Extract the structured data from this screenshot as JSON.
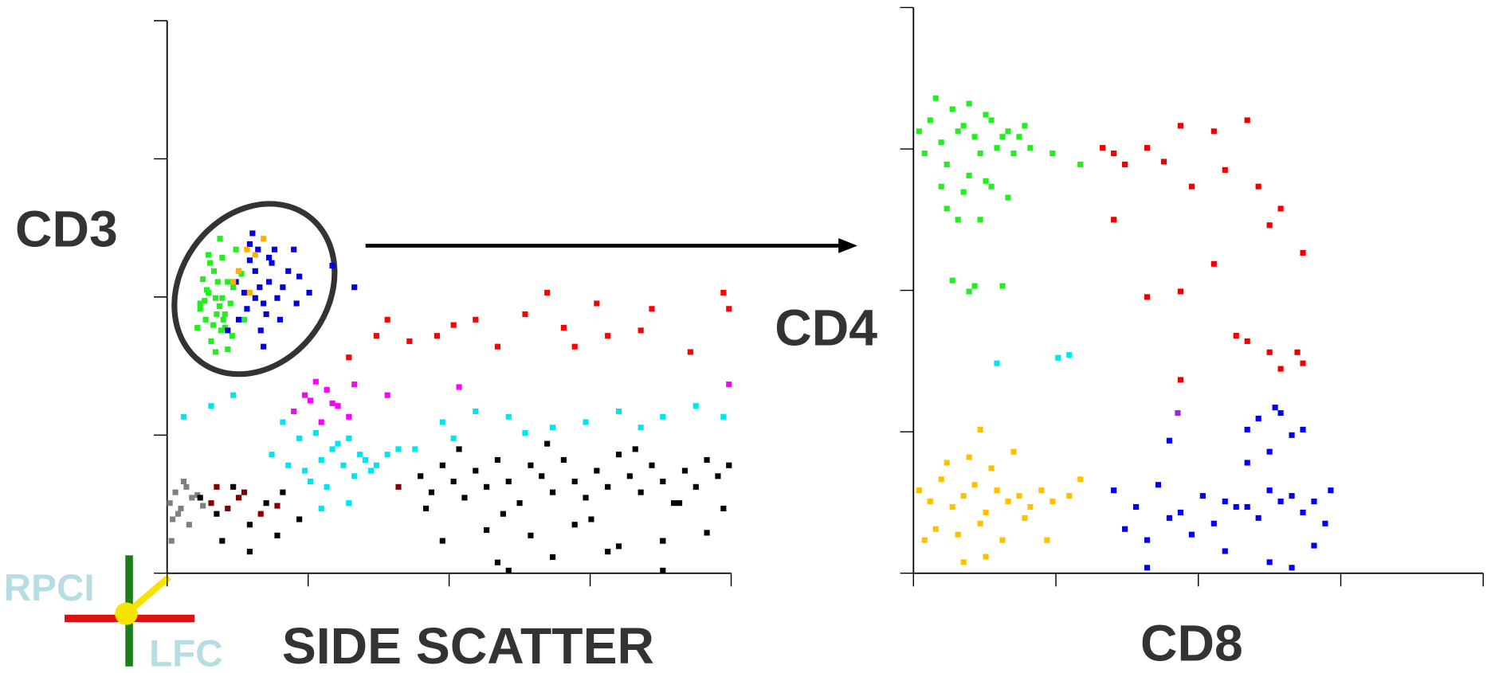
{
  "chart_data": [
    {
      "type": "scatter",
      "x_label": "SIDE SCATTER",
      "y_label": "CD3",
      "xlim": [
        0,
        1024
      ],
      "ylim": [
        0,
        1024
      ],
      "xticks": [
        0,
        256,
        512,
        768,
        1024
      ],
      "yticks": [
        0,
        256,
        512,
        768,
        1024
      ],
      "series": [
        {
          "color": "#808080",
          "x": [
            5,
            15,
            25,
            35,
            45,
            10,
            20,
            30,
            40,
            55,
            65,
            8
          ],
          "values": [
            130,
            150,
            120,
            160,
            140,
            100,
            110,
            170,
            90,
            145,
            125,
            60
          ]
        },
        {
          "color": "#000000",
          "x": [
            460,
            480,
            500,
            520,
            540,
            560,
            580,
            600,
            620,
            640,
            660,
            680,
            700,
            720,
            740,
            760,
            780,
            800,
            820,
            840,
            860,
            880,
            900,
            920,
            940,
            960,
            980,
            1000,
            1020,
            470,
            530,
            610,
            690,
            770,
            850,
            930,
            1010,
            500,
            580,
            660,
            740,
            820,
            900,
            980,
            600,
            700,
            800,
            900,
            60,
            90,
            120,
            150,
            180,
            210,
            240,
            100,
            150,
            200,
            620,
            900
          ],
          "values": [
            180,
            150,
            200,
            170,
            140,
            190,
            160,
            210,
            170,
            130,
            200,
            180,
            150,
            210,
            170,
            140,
            190,
            160,
            220,
            180,
            150,
            200,
            170,
            130,
            190,
            160,
            210,
            180,
            200,
            120,
            230,
            110,
            240,
            100,
            230,
            130,
            120,
            60,
            80,
            70,
            90,
            50,
            60,
            75,
            20,
            30,
            40,
            60,
            140,
            110,
            160,
            90,
            130,
            150,
            100,
            60,
            40,
            70,
            5,
            5
          ]
        },
        {
          "color": "#800000",
          "x": [
            80,
            110,
            140,
            170,
            90,
            130,
            200,
            420
          ],
          "values": [
            130,
            120,
            150,
            110,
            160,
            140,
            125,
            160
          ]
        },
        {
          "color": "#00e5ee",
          "x": [
            190,
            220,
            250,
            280,
            300,
            320,
            340,
            360,
            380,
            400,
            420,
            260,
            290,
            310,
            330,
            350,
            370,
            270,
            240,
            210,
            30,
            80,
            120,
            500,
            560,
            620,
            700,
            760,
            820,
            900,
            960,
            1010,
            450,
            520,
            650,
            860,
            330,
            280
          ],
          "values": [
            220,
            200,
            190,
            210,
            230,
            200,
            180,
            210,
            200,
            220,
            230,
            170,
            160,
            240,
            250,
            220,
            190,
            260,
            250,
            280,
            290,
            310,
            330,
            280,
            300,
            290,
            270,
            280,
            300,
            290,
            310,
            290,
            230,
            250,
            260,
            270,
            130,
            120
          ]
        },
        {
          "color": "#ff00ff",
          "x": [
            230,
            260,
            290,
            310,
            330,
            250,
            280,
            340,
            270,
            300,
            400,
            530,
            1020
          ],
          "values": [
            300,
            320,
            340,
            310,
            290,
            330,
            280,
            350,
            355,
            315,
            330,
            345,
            350
          ]
        },
        {
          "color": "#ff0000",
          "x": [
            330,
            380,
            440,
            520,
            600,
            650,
            720,
            800,
            880,
            950,
            1010,
            780,
            560,
            490,
            400,
            740,
            860,
            690,
            1020
          ],
          "values": [
            400,
            440,
            430,
            460,
            420,
            480,
            455,
            440,
            490,
            410,
            520,
            500,
            470,
            440,
            470,
            420,
            450,
            520,
            490
          ]
        },
        {
          "color": "#22ee22",
          "x": [
            60,
            75,
            90,
            100,
            110,
            85,
            70,
            95,
            120,
            105,
            80,
            65,
            115,
            130,
            100,
            88,
            72,
            98,
            140,
            60,
            110,
            125,
            92,
            78,
            105,
            68,
            118,
            84,
            96,
            150,
            55,
            102,
            135,
            88,
            75
          ],
          "values": [
            500,
            520,
            480,
            510,
            540,
            560,
            470,
            495,
            530,
            455,
            430,
            545,
            500,
            560,
            585,
            510,
            525,
            450,
            470,
            490,
            415,
            600,
            540,
            575,
            480,
            505,
            440,
            460,
            620,
            520,
            455,
            470,
            555,
            410,
            590
          ]
        },
        {
          "color": "#0000e0",
          "x": [
            140,
            160,
            175,
            150,
            185,
            200,
            130,
            165,
            190,
            210,
            145,
            170,
            155,
            180,
            220,
            195,
            125,
            160,
            175,
            205,
            235,
            240,
            150,
            185,
            168,
            110,
            230,
            258,
            340,
            300
          ],
          "values": [
            520,
            560,
            500,
            580,
            540,
            510,
            470,
            600,
            575,
            530,
            490,
            450,
            630,
            480,
            560,
            600,
            540,
            510,
            420,
            470,
            500,
            550,
            610,
            585,
            530,
            450,
            600,
            520,
            530,
            570
          ]
        },
        {
          "color": "#ffb000",
          "x": [
            145,
            160,
            130,
            175,
            150,
            120
          ],
          "values": [
            600,
            590,
            560,
            620,
            520,
            540
          ]
        }
      ]
    },
    {
      "type": "scatter",
      "x_label": "CD8",
      "y_label": "CD4",
      "xlim": [
        0,
        1024
      ],
      "ylim": [
        0,
        1024
      ],
      "xticks": [
        0,
        256,
        512,
        768,
        1024
      ],
      "yticks": [
        0,
        256,
        512,
        768,
        1024
      ],
      "series": [
        {
          "color": "#22ee22",
          "x": [
            10,
            30,
            50,
            70,
            90,
            110,
            130,
            150,
            170,
            190,
            20,
            40,
            60,
            80,
            100,
            120,
            140,
            160,
            180,
            200,
            50,
            90,
            130,
            170,
            60,
            100,
            140,
            80,
            120,
            110,
            100,
            160,
            70,
            210,
            250,
            300
          ],
          "values": [
            800,
            820,
            780,
            840,
            810,
            790,
            830,
            770,
            800,
            790,
            760,
            860,
            740,
            800,
            850,
            760,
            820,
            790,
            760,
            810,
            700,
            690,
            710,
            680,
            660,
            720,
            700,
            640,
            640,
            520,
            510,
            520,
            530,
            770,
            760,
            740
          ]
        },
        {
          "color": "#ffc000",
          "x": [
            10,
            30,
            50,
            70,
            90,
            110,
            130,
            150,
            170,
            190,
            210,
            230,
            250,
            280,
            40,
            80,
            120,
            160,
            200,
            60,
            100,
            140,
            180,
            20,
            240,
            90,
            130,
            120,
            300
          ],
          "values": [
            150,
            130,
            170,
            120,
            140,
            160,
            110,
            150,
            130,
            140,
            120,
            150,
            130,
            140,
            80,
            70,
            90,
            60,
            100,
            200,
            210,
            190,
            220,
            60,
            60,
            20,
            30,
            260,
            170
          ]
        },
        {
          "color": "#0000ee",
          "x": [
            360,
            400,
            440,
            480,
            520,
            560,
            600,
            640,
            680,
            720,
            750,
            380,
            420,
            460,
            500,
            540,
            580,
            620,
            660,
            700,
            740,
            600,
            640,
            680,
            620,
            660,
            700,
            560,
            640,
            680,
            420,
            720,
            460,
            600,
            650
          ],
          "values": [
            150,
            120,
            160,
            110,
            140,
            130,
            120,
            150,
            140,
            130,
            150,
            80,
            60,
            100,
            70,
            90,
            120,
            100,
            130,
            110,
            90,
            200,
            220,
            250,
            280,
            290,
            260,
            40,
            20,
            10,
            10,
            50,
            240,
            260,
            300
          ]
        },
        {
          "color": "#ee0000",
          "x": [
            340,
            360,
            380,
            420,
            450,
            480,
            500,
            540,
            560,
            600,
            620,
            640,
            660,
            700,
            690,
            360,
            420,
            480,
            600,
            540,
            580,
            640,
            660,
            480,
            700
          ],
          "values": [
            770,
            760,
            740,
            770,
            745,
            810,
            700,
            800,
            730,
            820,
            700,
            630,
            660,
            580,
            400,
            640,
            500,
            510,
            420,
            560,
            430,
            400,
            370,
            350,
            380
          ]
        },
        {
          "color": "#00e5ee",
          "x": [
            150,
            260,
            280
          ],
          "values": [
            380,
            390,
            395
          ]
        },
        {
          "color": "#a020f0",
          "x": [
            475
          ],
          "values": [
            290
          ]
        }
      ]
    }
  ],
  "logo": {
    "top": "RPCI",
    "bottom": "LFC"
  }
}
